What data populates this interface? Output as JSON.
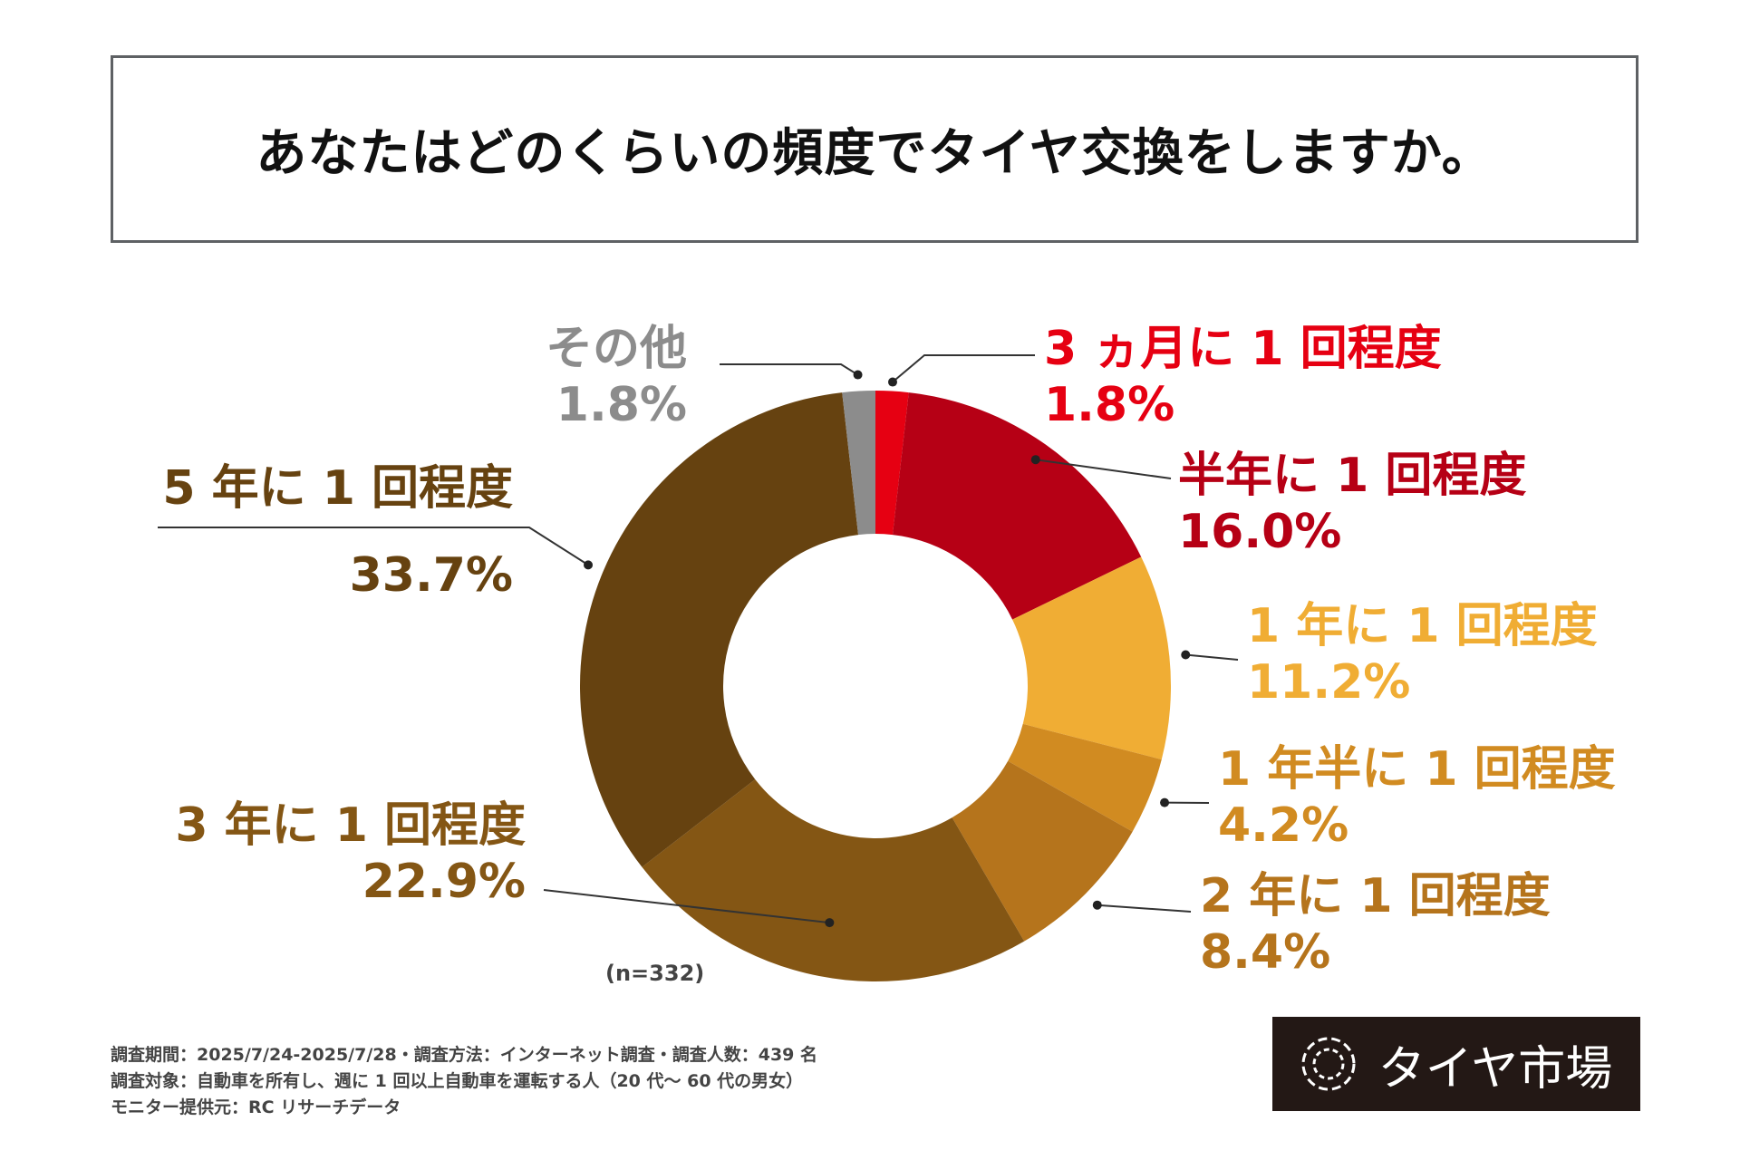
{
  "title": "あなたはどのくらいの頻度でタイヤ交換をしますか。",
  "chart_data": {
    "type": "pie",
    "donut": true,
    "title": "あなたはどのくらいの頻度でタイヤ交換をしますか。",
    "slices": [
      {
        "label": "3 ヵ月に 1 回程度",
        "value": 1.8,
        "display": "1.8%",
        "color": "#e60012"
      },
      {
        "label": "半年に 1 回程度",
        "value": 16.0,
        "display": "16.0%",
        "color": "#b60015"
      },
      {
        "label": "1 年に 1 回程度",
        "value": 11.2,
        "display": "11.2%",
        "color": "#f0ad34"
      },
      {
        "label": "1 年半に 1 回程度",
        "value": 4.2,
        "display": "4.2%",
        "color": "#d18b21"
      },
      {
        "label": "2 年に 1 回程度",
        "value": 8.4,
        "display": "8.4%",
        "color": "#b5741c"
      },
      {
        "label": "3 年に 1 回程度",
        "value": 22.9,
        "display": "22.9%",
        "color": "#845614"
      },
      {
        "label": "5 年に 1 回程度",
        "value": 33.7,
        "display": "33.7%",
        "color": "#664210"
      },
      {
        "label": "その他",
        "value": 1.8,
        "display": "1.8%",
        "color": "#8c8c8c"
      }
    ],
    "note": "(n=332)"
  },
  "label_colors": {
    "s0": "#e60012",
    "s1": "#b60015",
    "s2": "#f0ad34",
    "s3": "#d18b21",
    "s4": "#b5741c",
    "s5": "#845614",
    "s6": "#664210",
    "s7": "#8c8c8c"
  },
  "footer": {
    "line1": "調査期間：2025/7/24-2025/7/28・調査方法：インターネット調査・調査人数：439 名",
    "line2": "調査対象：自動車を所有し、週に 1 回以上自動車を運転する人（20 代～ 60 代の男女）",
    "line3": "モニター提供元：RC リサーチデータ"
  },
  "brand": {
    "name": "タイヤ市場",
    "icon": "tire-logo-icon"
  }
}
